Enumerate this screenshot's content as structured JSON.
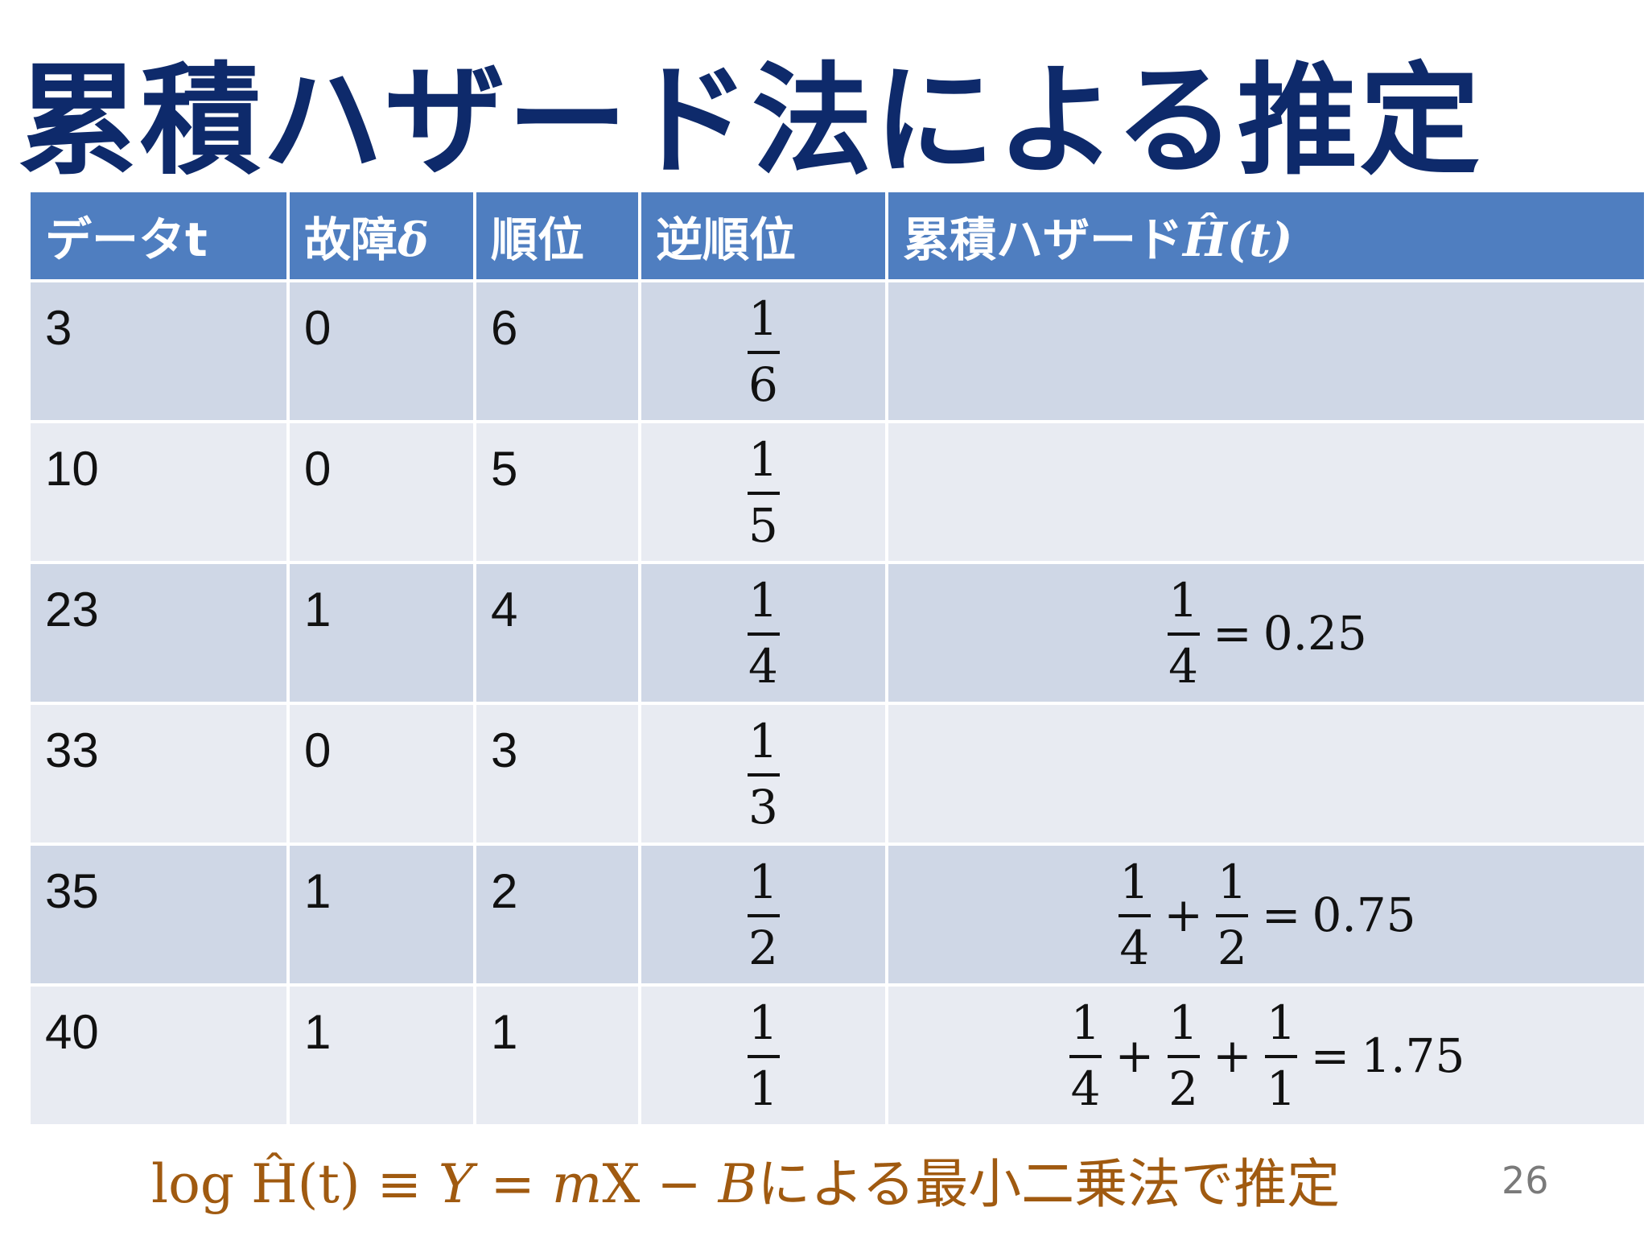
{
  "title": "累積ハザード法による推定",
  "table": {
    "headers": {
      "data": "データt",
      "failure": "故障",
      "failure_symbol": "δ",
      "rank": "順位",
      "reverse_rank": "逆順位",
      "hazard": "累積ハザード",
      "hazard_symbol": "Ĥ(t)"
    },
    "rows": [
      {
        "t": "3",
        "delta": "0",
        "rank": "6",
        "inv_num": "1",
        "inv_den": "6"
      },
      {
        "t": "10",
        "delta": "0",
        "rank": "5",
        "inv_num": "1",
        "inv_den": "5"
      },
      {
        "t": "23",
        "delta": "1",
        "rank": "4",
        "inv_num": "1",
        "inv_den": "4",
        "hazard": {
          "terms": [
            {
              "num": "1",
              "den": "4"
            }
          ],
          "result": "0.25"
        }
      },
      {
        "t": "33",
        "delta": "0",
        "rank": "3",
        "inv_num": "1",
        "inv_den": "3"
      },
      {
        "t": "35",
        "delta": "1",
        "rank": "2",
        "inv_num": "1",
        "inv_den": "2",
        "hazard": {
          "terms": [
            {
              "num": "1",
              "den": "4"
            },
            {
              "num": "1",
              "den": "2"
            }
          ],
          "result": "0.75"
        }
      },
      {
        "t": "40",
        "delta": "1",
        "rank": "1",
        "inv_num": "1",
        "inv_den": "1",
        "hazard": {
          "terms": [
            {
              "num": "1",
              "den": "4"
            },
            {
              "num": "1",
              "den": "2"
            },
            {
              "num": "1",
              "den": "1"
            }
          ],
          "result": "1.75"
        }
      }
    ],
    "plus": "+",
    "equals": "="
  },
  "formula": {
    "lhs": "log Ĥ(t)",
    "equiv": " ≡ ",
    "y": "Y",
    "eq": " = ",
    "m": "m",
    "x": "X",
    "minus": " − ",
    "b": "B",
    "text": "による最小二乗法で推定"
  },
  "page_number": "26",
  "colors": {
    "title": "#0e2a6b",
    "header_bg": "#4f7ec0",
    "row_odd": "#cfd7e6",
    "row_even": "#e8ebf2",
    "formula": "#a05a10",
    "page_number": "#7a7a7a"
  }
}
